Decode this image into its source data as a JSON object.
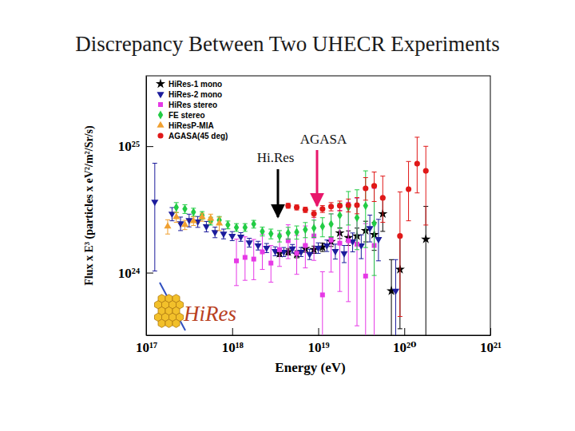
{
  "chart_data": {
    "type": "scatter",
    "title": "Discrepancy Between Two UHECR Experiments",
    "x_label": "Energy (eV)",
    "y_label": "Flux x E³ (particles x eV²/m²/Sr/s)",
    "log": true,
    "grid": false,
    "legend": "top-left",
    "xlim": [
      1e+17,
      1e+21
    ],
    "ylim": [
      3.2e+23,
      3.6e+25
    ],
    "xticks": [
      {
        "value": 1e+17,
        "label": "10¹⁷"
      },
      {
        "value": 1e+18,
        "label": "10¹⁸"
      },
      {
        "value": 1e+19,
        "label": "10¹⁹"
      },
      {
        "value": 1e+20,
        "label": "10²⁰"
      },
      {
        "value": 1e+21,
        "label": "10²¹"
      }
    ],
    "yticks": [
      {
        "value": 1e+24,
        "label": "10²⁴"
      },
      {
        "value": 1e+25,
        "label": "10²⁵"
      }
    ],
    "annotations": [
      {
        "text": "AGASA",
        "color": "#e8176b"
      },
      {
        "text": "Hi.Res",
        "color": "#000000"
      }
    ],
    "logo": "HiRes",
    "series": [
      {
        "name": "HiRes-1 mono",
        "color": "#000000",
        "marker": "star",
        "x": [
          3.55e+18,
          4.47e+18,
          5.62e+18,
          7.08e+18,
          8.91e+18,
          1.12e+19,
          1.41e+19,
          1.78e+19,
          2.24e+19,
          2.82e+19,
          3.55e+19,
          4.47e+19,
          5.62e+19,
          7.08e+19,
          8.91e+19,
          1.78e+20
        ],
        "values": [
          1.42e+24,
          1.46e+24,
          1.4e+24,
          1.55e+24,
          1.52e+24,
          1.59e+24,
          1.76e+24,
          2.06e+24,
          1.89e+24,
          1.95e+24,
          2.15e+24,
          2e+24,
          2.92e+24,
          7.17e+23,
          1.06e+24,
          1.84e+24
        ],
        "error_minus": [
          8e+22,
          8e+22,
          9e+22,
          1e+23,
          1e+23,
          1.2e+23,
          1.5e+23,
          2e+23,
          2.5e+23,
          3e+23,
          4e+23,
          5e+23,
          8e+23,
          4.5e+23,
          7e+23,
          1.8e+24
        ],
        "error_plus": [
          8e+22,
          8e+22,
          9e+22,
          1e+23,
          1e+23,
          1.2e+23,
          1.5e+23,
          2e+23,
          2.5e+23,
          3e+23,
          4e+23,
          5e+23,
          1e+24,
          5.5e+23,
          9e+23,
          1.5e+24
        ]
      },
      {
        "name": "HiRes-2 mono",
        "color": "#1c1c9c",
        "marker": "triangle-down",
        "x": [
          1.26e+17,
          2e+17,
          2.51e+17,
          3.16e+17,
          3.98e+17,
          5.01e+17,
          6.31e+17,
          7.94e+17,
          1e+18,
          1.26e+18,
          1.58e+18,
          2e+18,
          2.51e+18,
          3.16e+18,
          3.98e+18,
          5.01e+18,
          6.31e+18,
          7.94e+18,
          1e+19,
          1.26e+19,
          1.58e+19,
          2e+19,
          2.51e+19,
          3.16e+19,
          3.98e+19,
          5.01e+19,
          7.94e+19
        ],
        "values": [
          3.63e+24,
          2.92e+24,
          2.45e+24,
          2.6e+24,
          2.53e+24,
          2.32e+24,
          2.09e+24,
          2.03e+24,
          1.95e+24,
          1.92e+24,
          1.73e+24,
          1.64e+24,
          1.57e+24,
          1.48e+24,
          1.46e+24,
          1.55e+24,
          1.46e+24,
          1.4e+24,
          1.57e+24,
          1.64e+24,
          1.48e+24,
          1.42e+24,
          1.76e+24,
          1.64e+24,
          2.25e+24,
          1.84e+24,
          7.17e+23
        ],
        "error_minus": [
          2.6e+24,
          3.5e+23,
          3e+23,
          3e+23,
          2.5e+23,
          2.2e+23,
          2e+23,
          1.8e+23,
          1.6e+23,
          1.5e+23,
          1.4e+23,
          1.3e+23,
          1.3e+23,
          1.2e+23,
          1.2e+23,
          1.2e+23,
          1.2e+23,
          1.3e+23,
          1.5e+23,
          1.7e+23,
          2e+23,
          2.2e+23,
          3e+23,
          3.5e+23,
          5e+23,
          6e+23,
          4.5e+23
        ],
        "error_plus": [
          3.7e+24,
          3.5e+23,
          3e+23,
          3e+23,
          2.5e+23,
          2.2e+23,
          2e+23,
          1.8e+23,
          1.6e+23,
          1.5e+23,
          1.4e+23,
          1.3e+23,
          1.3e+23,
          1.2e+23,
          1.2e+23,
          1.2e+23,
          1.2e+23,
          1.3e+23,
          1.5e+23,
          1.7e+23,
          2e+23,
          2.2e+23,
          3e+23,
          3.5e+23,
          6e+23,
          8e+23,
          5.5e+23
        ]
      },
      {
        "name": "HiRes stereo",
        "color": "#e639e6",
        "marker": "square",
        "x": [
          1.12e+18,
          1.41e+18,
          1.78e+18,
          2.24e+18,
          2.82e+18,
          3.55e+18,
          4.47e+18,
          5.62e+18,
          7.08e+18,
          8.91e+18,
          1.12e+19,
          1.41e+19,
          1.78e+19,
          2.24e+19,
          2.82e+19,
          3.55e+19,
          4.47e+19
        ],
        "values": [
          1.24e+24,
          1.32e+24,
          1.28e+24,
          1.46e+24,
          1.19e+24,
          1.52e+24,
          1.79e+24,
          1.42e+24,
          1.64e+24,
          1.95e+24,
          6.67e+23,
          1.81e+24,
          1.71e+24,
          1.79e+24,
          1.68e+24,
          9.4e+23,
          1.64e+24
        ],
        "error_minus": [
          4.5e+23,
          4.5e+23,
          4e+23,
          4e+23,
          3.5e+23,
          4e+23,
          5e+23,
          4.5e+23,
          5.5e+23,
          7e+23,
          6e+23,
          8e+23,
          1e+24,
          1.2e+24,
          1.3e+24,
          9e+23,
          1.5e+24
        ],
        "error_plus": [
          6e+23,
          6e+23,
          5.5e+23,
          5.5e+23,
          4.5e+23,
          5e+23,
          6e+23,
          5.5e+23,
          7e+23,
          9e+23,
          3.5e+23,
          1.1e+24,
          1.4e+24,
          1.8e+24,
          2.2e+24,
          1.5e+24,
          3e+24
        ]
      },
      {
        "name": "FE stereo",
        "color": "#22cc44",
        "marker": "diamond",
        "x": [
          2.24e+17,
          2.82e+17,
          3.55e+17,
          4.47e+17,
          5.62e+17,
          7.08e+17,
          8.91e+17,
          1.12e+18,
          1.41e+18,
          1.78e+18,
          2.24e+18,
          2.82e+18,
          3.55e+18,
          4.47e+18,
          5.62e+18,
          7.08e+18,
          8.91e+18,
          1.12e+19,
          1.41e+19,
          1.78e+19,
          2.24e+19,
          2.82e+19,
          3.55e+19,
          4.47e+19
        ],
        "values": [
          3.28e+24,
          3.19e+24,
          3.01e+24,
          2.84e+24,
          2.56e+24,
          2.6e+24,
          2.39e+24,
          2.28e+24,
          2.28e+24,
          2.42e+24,
          2.12e+24,
          2.03e+24,
          1.95e+24,
          2.06e+24,
          2.09e+24,
          2.19e+24,
          2.25e+24,
          2.32e+24,
          2.42e+24,
          2.84e+24,
          3.28e+24,
          2.72e+24,
          3.38e+24,
          2.45e+24
        ],
        "error_minus": [
          3e+23,
          2.5e+23,
          2.2e+23,
          2e+23,
          1.8e+23,
          1.8e+23,
          1.7e+23,
          1.6e+23,
          1.6e+23,
          1.7e+23,
          1.7e+23,
          1.8e+23,
          2e+23,
          2.2e+23,
          2.5e+23,
          3e+23,
          3.5e+23,
          4e+23,
          5e+23,
          6e+23,
          9e+23,
          1.2e+24,
          1.8e+24,
          1.5e+24
        ],
        "error_plus": [
          3e+23,
          2.5e+23,
          2.2e+23,
          2e+23,
          1.8e+23,
          1.8e+23,
          1.7e+23,
          1.6e+23,
          1.6e+23,
          1.7e+23,
          1.7e+23,
          1.8e+23,
          2e+23,
          2.2e+23,
          2.5e+23,
          3e+23,
          3.5e+23,
          4e+23,
          5e+23,
          7e+23,
          1.1e+24,
          1.8e+24,
          3e+24,
          2.5e+24
        ]
      },
      {
        "name": "HiResP-MIA",
        "color": "#f0a030",
        "marker": "triangle-up",
        "x": [
          1.78e+17,
          2.24e+17,
          2.82e+17,
          3.55e+17,
          4.47e+17,
          5.62e+17,
          7.08e+17
        ],
        "values": [
          2.32e+24,
          2.75e+24,
          2.39e+24,
          2.56e+24,
          2.75e+24,
          2.68e+24,
          2.45e+24
        ],
        "error_minus": [
          3e+23,
          2.5e+23,
          2e+23,
          2e+23,
          2e+23,
          2.2e+23,
          3e+23
        ],
        "error_plus": [
          3e+23,
          2.5e+23,
          2e+23,
          2e+23,
          2e+23,
          2.2e+23,
          3e+23
        ]
      },
      {
        "name": "AGASA(45 deg)",
        "color": "#e01818",
        "marker": "circle",
        "x": [
          4.47e+18,
          5.62e+18,
          7.08e+18,
          8.91e+18,
          1.12e+19,
          1.41e+19,
          1.78e+19,
          2.24e+19,
          2.82e+19,
          3.55e+19,
          4.47e+19,
          5.62e+19,
          8.91e+19,
          1.12e+20,
          1.41e+20,
          1.78e+20
        ],
        "values": [
          3.38e+24,
          3.28e+24,
          3.14e+24,
          2.92e+24,
          3.19e+24,
          3.33e+24,
          3.38e+24,
          3.42e+24,
          3.42e+24,
          4.64e+24,
          4.85e+24,
          3.9e+24,
          1.95e+24,
          4.57e+24,
          7.27e+24,
          6.38e+24
        ],
        "error_minus": [
          1.5e+23,
          1.5e+23,
          1.5e+23,
          1.8e+23,
          2e+23,
          2.5e+23,
          3e+23,
          4e+23,
          5e+23,
          9e+23,
          1.2e+24,
          1.4e+24,
          1.5e+24,
          2e+24,
          3e+24,
          4e+24
        ],
        "error_plus": [
          1.5e+23,
          1.5e+23,
          1.5e+23,
          1.8e+23,
          2e+23,
          2.5e+23,
          3e+23,
          4e+23,
          5e+23,
          1e+24,
          1.4e+24,
          1.9e+24,
          2.4e+24,
          3e+24,
          4.5e+24,
          3.6e+24
        ]
      }
    ]
  }
}
